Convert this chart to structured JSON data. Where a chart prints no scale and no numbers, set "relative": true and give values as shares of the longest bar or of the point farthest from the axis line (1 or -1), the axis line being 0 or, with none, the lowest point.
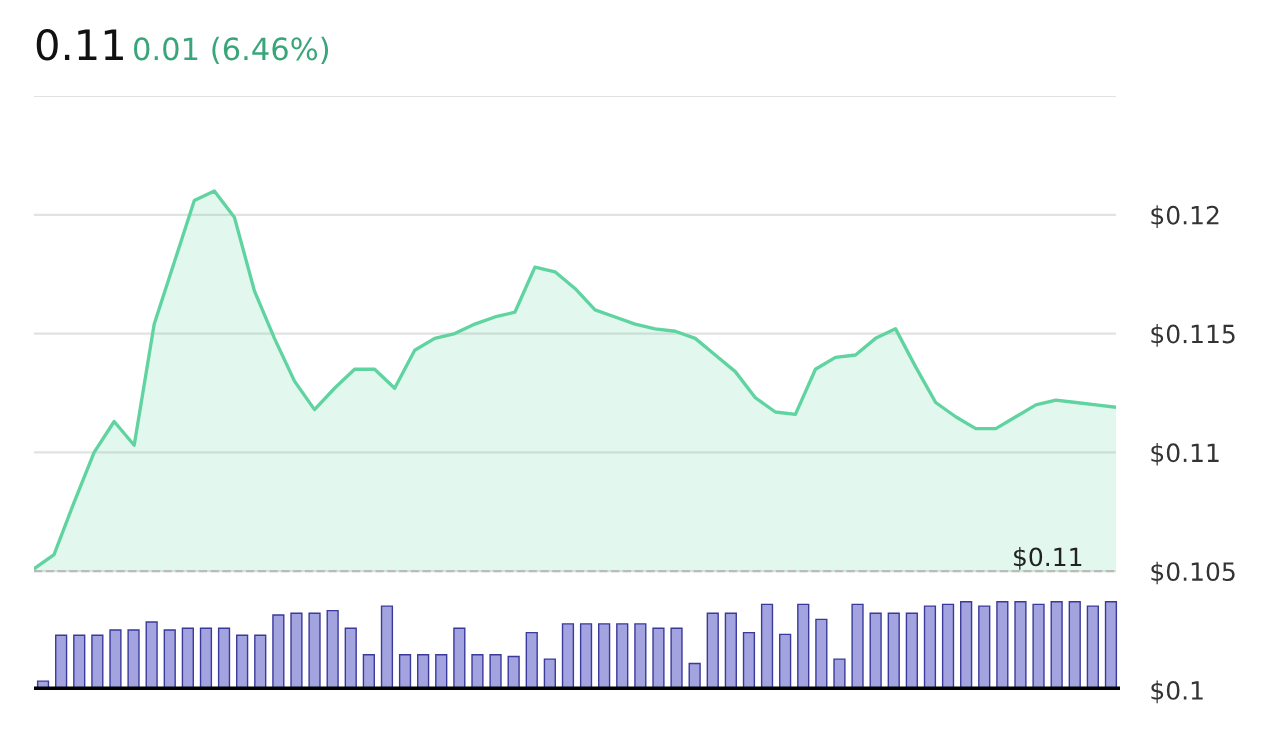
{
  "chart_data": [
    {
      "type": "area",
      "title": "0.11",
      "subtitle": "0.01 (6.46%)",
      "categories": [
        null,
        null,
        null,
        null,
        null,
        null,
        null,
        null,
        null,
        null,
        null,
        null,
        null,
        null,
        null,
        null,
        null,
        null,
        null,
        null,
        null,
        null,
        null,
        null,
        null,
        null,
        null,
        null,
        null,
        null,
        null,
        null,
        null,
        null,
        null,
        null,
        null,
        null,
        null,
        null,
        null,
        null,
        null,
        null,
        null,
        null,
        null,
        null,
        null,
        null,
        null,
        null,
        null,
        null,
        null
      ],
      "series": [
        {
          "color": "#5fd3a0",
          "values": [
            0.1051,
            0.1057,
            0.1079,
            0.11,
            0.1113,
            0.1103,
            0.1154,
            0.118,
            0.1206,
            0.121,
            0.1199,
            0.1168,
            0.1148,
            0.113,
            0.1118,
            0.1127,
            0.1135,
            0.1135,
            0.1127,
            0.1143,
            0.1148,
            0.115,
            0.1154,
            0.1157,
            0.1159,
            0.1178,
            0.1176,
            0.1169,
            0.116,
            0.1157,
            0.1154,
            0.1152,
            0.1151,
            0.1148,
            0.1141,
            0.1134,
            0.1123,
            0.1117,
            0.1116,
            0.1135,
            0.114,
            0.1141,
            0.1148,
            0.1152,
            0.1136,
            0.1121,
            0.1115,
            0.111,
            0.111,
            0.1115,
            0.112,
            0.1122,
            0.1121,
            0.112,
            0.1119
          ]
        }
      ],
      "ylim": [
        0.1,
        0.125
      ],
      "yticks": [
        {
          "value": 0.1,
          "label": "$0.1"
        },
        {
          "value": 0.105,
          "label": "$0.105"
        },
        {
          "value": 0.11,
          "label": "$0.11"
        },
        {
          "value": 0.115,
          "label": "$0.115"
        },
        {
          "value": 0.12,
          "label": "$0.12"
        },
        {
          "value": 0.125,
          "label": null
        }
      ],
      "ref_lines": [
        {
          "axis": "y",
          "value": 0.105,
          "label": "$0.11",
          "color": "#bbbbbb",
          "line_style": "dashed"
        }
      ],
      "grid": "y",
      "tick_labels": "y"
    },
    {
      "type": "bar",
      "relative": true,
      "color": "#a3a3e0",
      "categories": [
        null,
        null,
        null,
        null,
        null,
        null,
        null,
        null,
        null,
        null,
        null,
        null,
        null,
        null,
        null,
        null,
        null,
        null,
        null,
        null,
        null,
        null,
        null,
        null,
        null,
        null,
        null,
        null,
        null,
        null,
        null,
        null,
        null,
        null,
        null,
        null,
        null,
        null,
        null,
        null,
        null,
        null,
        null,
        null,
        null,
        null,
        null,
        null,
        null,
        null,
        null,
        null,
        null,
        null,
        null,
        null,
        null,
        null,
        null,
        null
      ],
      "values": [
        0.1,
        0.62,
        0.62,
        0.62,
        0.68,
        0.68,
        0.77,
        0.68,
        0.7,
        0.7,
        0.7,
        0.62,
        0.62,
        0.85,
        0.87,
        0.87,
        0.9,
        0.7,
        0.4,
        0.95,
        0.4,
        0.4,
        0.4,
        0.7,
        0.4,
        0.4,
        0.38,
        0.65,
        0.35,
        0.75,
        0.75,
        0.75,
        0.75,
        0.75,
        0.7,
        0.7,
        0.3,
        0.87,
        0.87,
        0.65,
        0.97,
        0.63,
        0.97,
        0.8,
        0.35,
        0.97,
        0.87,
        0.87,
        0.87,
        0.95,
        0.97,
        1,
        0.95,
        1,
        1,
        0.97,
        1,
        1,
        0.95,
        1
      ]
    }
  ]
}
